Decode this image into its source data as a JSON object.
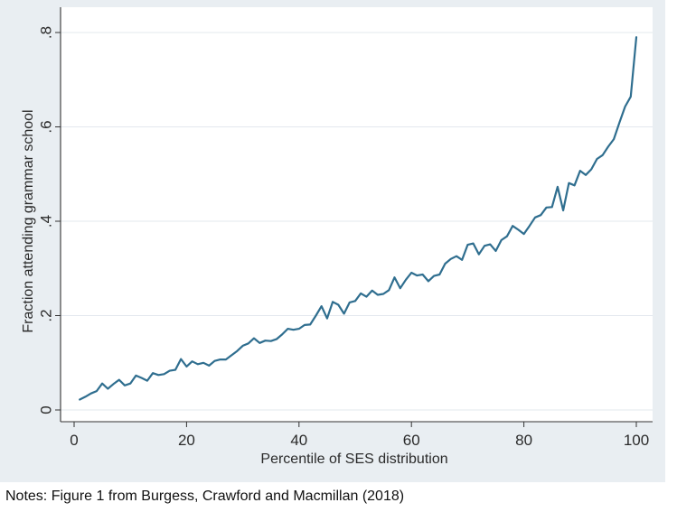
{
  "note": "Notes: Figure 1 from Burgess, Crawford and Macmillan (2018)",
  "colors": {
    "figure_background": "#e9eef2",
    "plot_background": "#ffffff",
    "line": "#2f6e8f",
    "grid": "#e3e8ee"
  },
  "chart_data": {
    "type": "line",
    "title": "",
    "xlabel": "Percentile of SES distribution",
    "ylabel": "Fraction attending grammar school",
    "xlim": [
      0,
      100
    ],
    "ylim": [
      0,
      0.8
    ],
    "xticks": [
      0,
      20,
      40,
      60,
      80,
      100
    ],
    "xtick_labels": [
      "0",
      "20",
      "40",
      "60",
      "80",
      "100"
    ],
    "yticks": [
      0,
      0.2,
      0.4,
      0.6,
      0.8
    ],
    "ytick_labels": [
      "0",
      ".2",
      ".4",
      ".6",
      ".8"
    ],
    "grid": true,
    "legend": "none",
    "series": [
      {
        "x": [
          1,
          2,
          3,
          4,
          5,
          6,
          7,
          8,
          9,
          10,
          11,
          12,
          13,
          14,
          15,
          16,
          17,
          18,
          19,
          20,
          21,
          22,
          23,
          24,
          25,
          26,
          27,
          28,
          29,
          30,
          31,
          32,
          33,
          34,
          35,
          36,
          37,
          38,
          39,
          40,
          41,
          42,
          43,
          44,
          45,
          46,
          47,
          48,
          49,
          50,
          51,
          52,
          53,
          54,
          55,
          56,
          57,
          58,
          59,
          60,
          61,
          62,
          63,
          64,
          65,
          66,
          67,
          68,
          69,
          70,
          71,
          72,
          73,
          74,
          75,
          76,
          77,
          78,
          79,
          80,
          81,
          82,
          83,
          84,
          85,
          86,
          87,
          88,
          89,
          90,
          91,
          92,
          93,
          94,
          95,
          96,
          97,
          98,
          99,
          100
        ],
        "y": [
          0.022,
          0.028,
          0.035,
          0.04,
          0.056,
          0.045,
          0.055,
          0.064,
          0.052,
          0.056,
          0.073,
          0.068,
          0.062,
          0.078,
          0.074,
          0.076,
          0.083,
          0.085,
          0.108,
          0.092,
          0.103,
          0.097,
          0.1,
          0.094,
          0.104,
          0.107,
          0.107,
          0.116,
          0.125,
          0.136,
          0.141,
          0.152,
          0.142,
          0.147,
          0.146,
          0.15,
          0.16,
          0.172,
          0.17,
          0.172,
          0.18,
          0.181,
          0.2,
          0.22,
          0.194,
          0.229,
          0.223,
          0.204,
          0.228,
          0.231,
          0.247,
          0.24,
          0.253,
          0.244,
          0.246,
          0.254,
          0.281,
          0.258,
          0.276,
          0.291,
          0.285,
          0.287,
          0.273,
          0.284,
          0.287,
          0.31,
          0.32,
          0.326,
          0.318,
          0.35,
          0.353,
          0.33,
          0.348,
          0.351,
          0.337,
          0.36,
          0.368,
          0.39,
          0.382,
          0.373,
          0.39,
          0.408,
          0.413,
          0.429,
          0.43,
          0.473,
          0.423,
          0.481,
          0.476,
          0.507,
          0.498,
          0.51,
          0.532,
          0.54,
          0.558,
          0.574,
          0.609,
          0.643,
          0.664,
          0.79
        ]
      }
    ]
  }
}
